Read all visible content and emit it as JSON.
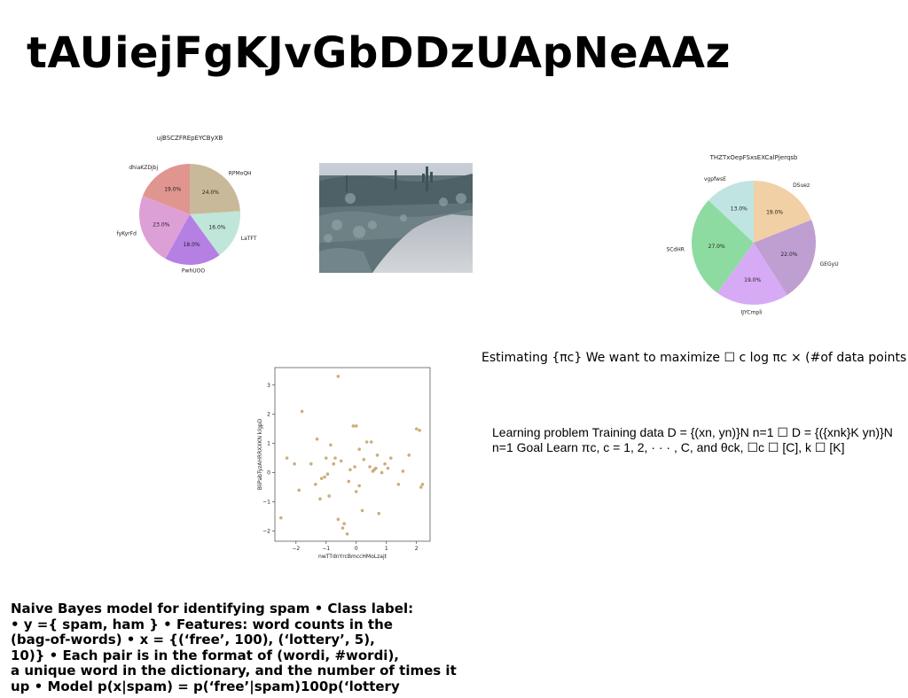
{
  "title": "tAUiejFgKJvGbDDzUApNeAAz",
  "pie1": {
    "chart_data": {
      "type": "pie",
      "title": "ujBSCZFREpEYCByXB",
      "labels": [
        "RPMoQH",
        "LaTFT",
        "PwhUOO",
        "fyKyrFd",
        "dhiaKZDjbj"
      ],
      "values": [
        24.0,
        16.0,
        18.0,
        23.0,
        19.0
      ],
      "colors": [
        "#c8b99a",
        "#bfe6d9",
        "#b57fe3",
        "#dda0d6",
        "#e0958f"
      ]
    }
  },
  "pie2": {
    "chart_data": {
      "type": "pie",
      "title": "THZTxOepFSxsEXCalPjerqsb",
      "labels": [
        "DSuez",
        "GEGyU",
        "IJYCmpli",
        "SCdHR",
        "vgpfwsE"
      ],
      "values": [
        19.0,
        22.0,
        19.0,
        27.0,
        13.0
      ],
      "colors": [
        "#f0d0a4",
        "#bf9ed2",
        "#d6aaf5",
        "#8edba1",
        "#c0e4e2"
      ]
    }
  },
  "scatter": {
    "chart_data": {
      "type": "scatter",
      "xlabel": "nwTTdnYrcBmccHMoLzajt",
      "ylabel": "BliPabTyzAHRRXXKN klgpD",
      "xlim": [
        -2.7,
        2.45
      ],
      "ylim": [
        -2.35,
        3.6
      ],
      "xticks": [
        -2,
        -1,
        0,
        1,
        2
      ],
      "yticks": [
        -2,
        -1,
        0,
        1,
        2,
        3
      ],
      "xtick_labels": [
        "−2",
        "−1",
        "0",
        "1",
        "2"
      ],
      "ytick_labels": [
        "−2",
        "−1",
        "0",
        "1",
        "2",
        "3"
      ],
      "color": "#c9a46a",
      "x": [
        -0.6,
        -1.8,
        -2.5,
        -2.3,
        -2.05,
        -1.9,
        -1.5,
        -1.35,
        -1.3,
        -1.2,
        -1.05,
        -1.0,
        -0.9,
        -0.85,
        -0.7,
        -0.6,
        -0.5,
        -0.4,
        -0.3,
        -0.25,
        -0.1,
        -0.05,
        0.0,
        0.0,
        0.1,
        0.25,
        0.35,
        0.45,
        0.5,
        0.55,
        0.6,
        0.65,
        0.7,
        0.75,
        0.85,
        0.95,
        1.05,
        1.15,
        1.4,
        1.55,
        1.75,
        2.0,
        2.1,
        2.15,
        2.2,
        -1.15,
        -0.95,
        -0.75,
        -0.45,
        -0.2,
        0.1,
        0.2
      ],
      "y": [
        3.3,
        2.1,
        -1.55,
        0.5,
        0.3,
        -0.6,
        0.3,
        -0.4,
        1.15,
        -0.9,
        -0.15,
        0.5,
        -0.8,
        0.95,
        0.5,
        -1.6,
        0.4,
        -1.75,
        -2.1,
        -0.3,
        1.6,
        0.2,
        1.6,
        -0.65,
        0.8,
        0.45,
        1.05,
        0.2,
        1.05,
        0.05,
        0.1,
        0.15,
        0.6,
        -1.4,
        0.0,
        0.3,
        0.15,
        0.5,
        -0.4,
        0.05,
        0.6,
        1.5,
        1.45,
        -0.5,
        -0.4,
        -0.2,
        -0.05,
        0.3,
        -1.9,
        0.1,
        -0.45,
        -1.3
      ]
    }
  },
  "text_estimating": "Estimating {πc} We want to maximize ☐ c log πc × (#of data points",
  "text_learning": "Learning problem Training data D = {(xn, yn)}N n=1 ☐ D = {({xnk}K yn)}N n=1 Goal Learn πc, c = 1, 2, · · · , C, and θck, ☐c ☐ [C], k ☐ [K]",
  "text_naive": [
    "Naive Bayes model for identifying spam • Class label:",
    "• y ={ spam, ham } • Features: word counts in the",
    "(bag-of-words) • x = {(‘free’, 100), (‘lottery’, 5),",
    "10)} • Each pair is in the format of (wordi, #wordi),",
    "a unique word in the dictionary, and the number of times it",
    "up • Model p(x|spam) = p(‘free’|spam)100p(‘lottery"
  ]
}
